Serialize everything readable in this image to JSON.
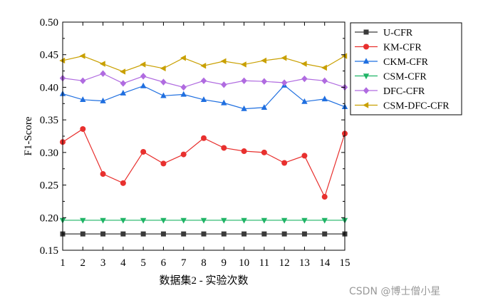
{
  "chart_data": {
    "type": "line",
    "xlabel": "数据集2 - 实验次数",
    "ylabel": "F1-Score",
    "xlim": [
      1,
      15
    ],
    "ylim": [
      0.15,
      0.5
    ],
    "x_ticks": [
      1,
      2,
      3,
      4,
      5,
      6,
      7,
      8,
      9,
      10,
      11,
      12,
      13,
      14,
      15
    ],
    "y_ticks": [
      "0.15",
      "0.20",
      "0.25",
      "0.30",
      "0.35",
      "0.40",
      "0.45",
      "0.50"
    ],
    "grid": false,
    "legend_position": "top-right",
    "x": [
      1,
      2,
      3,
      4,
      5,
      6,
      7,
      8,
      9,
      10,
      11,
      12,
      13,
      14,
      15
    ],
    "series": [
      {
        "name": "U-CFR",
        "color": "#3a3a3a",
        "marker": "square",
        "values": [
          0.175,
          0.175,
          0.175,
          0.175,
          0.175,
          0.175,
          0.175,
          0.175,
          0.175,
          0.175,
          0.175,
          0.175,
          0.175,
          0.175,
          0.175
        ]
      },
      {
        "name": "KM-CFR",
        "color": "#e8302e",
        "marker": "circle",
        "values": [
          0.316,
          0.336,
          0.267,
          0.253,
          0.301,
          0.283,
          0.297,
          0.322,
          0.307,
          0.302,
          0.3,
          0.284,
          0.295,
          0.232,
          0.329
        ]
      },
      {
        "name": "CKM-CFR",
        "color": "#1f6fe0",
        "marker": "triangle-up",
        "values": [
          0.39,
          0.381,
          0.379,
          0.391,
          0.402,
          0.387,
          0.389,
          0.381,
          0.376,
          0.367,
          0.369,
          0.403,
          0.378,
          0.382,
          0.37
        ]
      },
      {
        "name": "CSM-CFR",
        "color": "#1fb466",
        "marker": "triangle-down",
        "values": [
          0.196,
          0.196,
          0.196,
          0.196,
          0.196,
          0.196,
          0.196,
          0.196,
          0.196,
          0.196,
          0.196,
          0.196,
          0.196,
          0.196,
          0.196
        ]
      },
      {
        "name": "DFC-CFR",
        "color": "#b06be0",
        "marker": "diamond",
        "values": [
          0.414,
          0.41,
          0.421,
          0.406,
          0.417,
          0.408,
          0.4,
          0.41,
          0.404,
          0.41,
          0.409,
          0.407,
          0.413,
          0.41,
          0.4
        ]
      },
      {
        "name": "CSM-DFC-CFR",
        "color": "#c9a000",
        "marker": "triangle-left",
        "values": [
          0.441,
          0.448,
          0.436,
          0.424,
          0.435,
          0.429,
          0.445,
          0.433,
          0.44,
          0.435,
          0.441,
          0.445,
          0.436,
          0.43,
          0.448
        ]
      }
    ]
  },
  "watermark": "CSDN @博士僧小星"
}
